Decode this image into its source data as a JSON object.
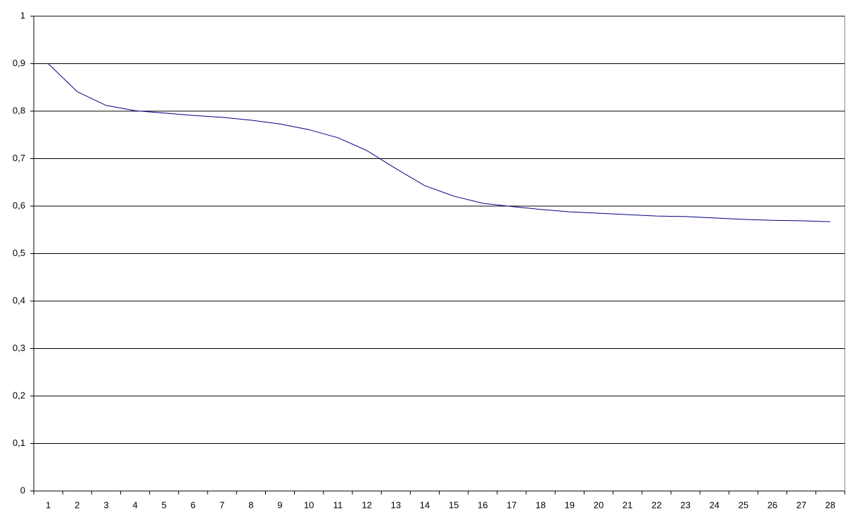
{
  "chart_data": {
    "type": "line",
    "categories": [
      "1",
      "2",
      "3",
      "4",
      "5",
      "6",
      "7",
      "8",
      "9",
      "10",
      "11",
      "12",
      "13",
      "14",
      "15",
      "16",
      "17",
      "18",
      "19",
      "20",
      "21",
      "22",
      "23",
      "24",
      "25",
      "26",
      "27",
      "28"
    ],
    "series": [
      {
        "color": "#000080",
        "values": [
          0.9,
          0.841,
          0.812,
          0.801,
          0.796,
          0.791,
          0.787,
          0.781,
          0.773,
          0.761,
          0.744,
          0.717,
          0.679,
          0.643,
          0.621,
          0.606,
          0.599,
          0.593,
          0.588,
          0.585,
          0.582,
          0.579,
          0.578,
          0.575,
          0.572,
          0.57,
          0.569,
          0.567
        ]
      }
    ],
    "ylim": [
      0,
      1
    ],
    "yticks": [
      0,
      {
        "value": 0.1,
        "label": "0,1"
      },
      {
        "value": 0.2,
        "label": "0,2"
      },
      {
        "value": 0.3,
        "label": "0,3"
      },
      {
        "value": 0.4,
        "label": "0,4"
      },
      {
        "value": 0.5,
        "label": "0,5"
      },
      {
        "value": 0.6,
        "label": "0,6"
      },
      {
        "value": 0.7,
        "label": "0,7"
      },
      {
        "value": 0.8,
        "label": "0,8"
      },
      {
        "value": 0.9,
        "label": "0,9"
      },
      1
    ],
    "grid": true
  }
}
